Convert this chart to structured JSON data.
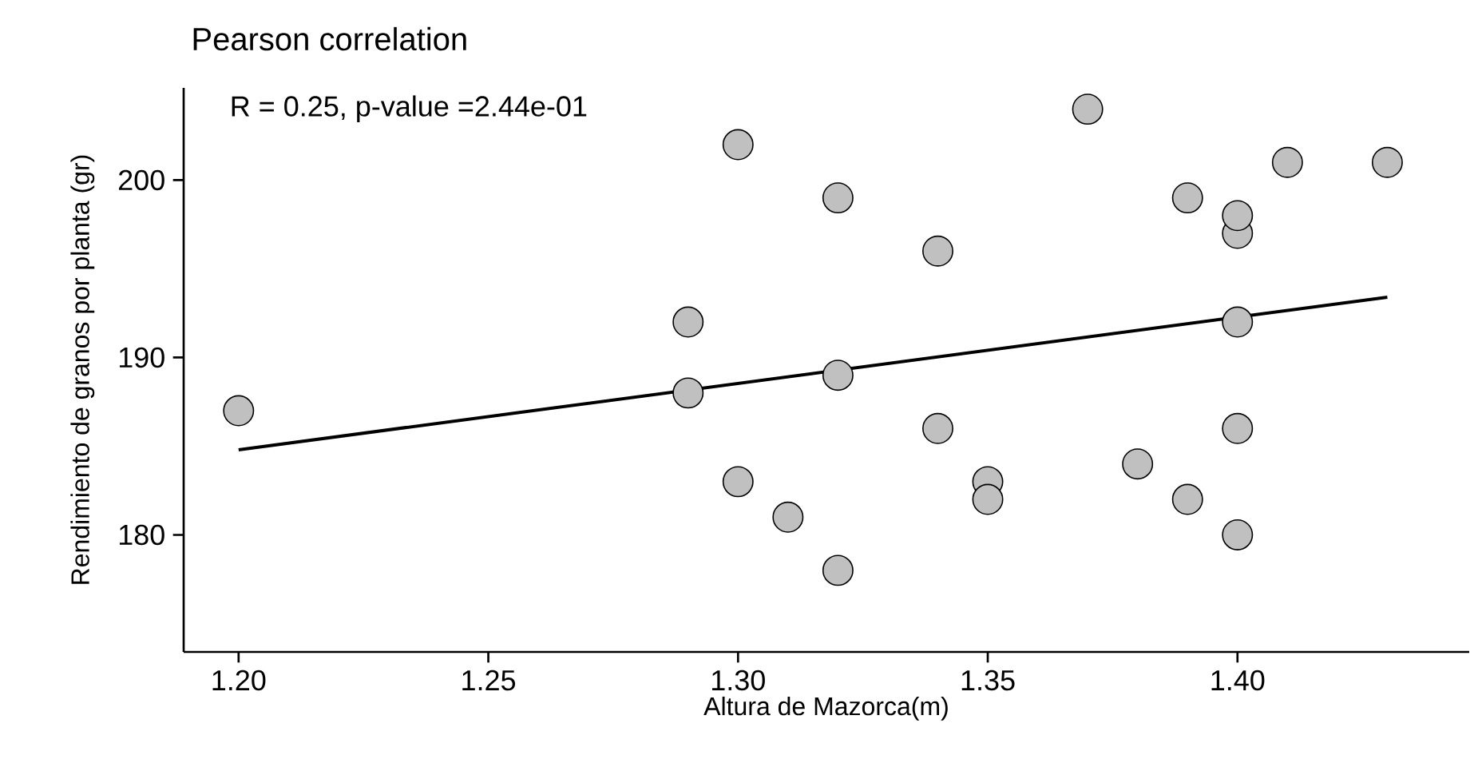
{
  "chart_data": {
    "type": "scatter",
    "title": "Pearson correlation",
    "xlabel": "Altura de Mazorca(m)",
    "ylabel": "Rendimiento de granos por planta (gr)",
    "annotations": [
      "R = 0.25, p-value =2.44e-01"
    ],
    "xlim": [
      1.189,
      1.4464
    ],
    "ylim": [
      173.4,
      205.2
    ],
    "xticks": [
      {
        "value": 1.2,
        "label": "1.20"
      },
      {
        "value": 1.25,
        "label": "1.25"
      },
      {
        "value": 1.3,
        "label": "1.30"
      },
      {
        "value": 1.35,
        "label": "1.35"
      },
      {
        "value": 1.4,
        "label": "1.40"
      }
    ],
    "yticks": [
      180,
      190,
      200
    ],
    "grid": false,
    "series": [
      {
        "type": "line",
        "color": "#000000",
        "marker": "none",
        "line_style": "solid",
        "x": [
          1.2,
          1.43
        ],
        "values": [
          184.8,
          193.4
        ]
      },
      {
        "color": "#c0c0c0",
        "marker": "circle",
        "x": [
          1.2,
          1.3,
          1.29,
          1.29,
          1.3,
          1.31,
          1.32,
          1.32,
          1.32,
          1.34,
          1.34,
          1.35,
          1.35,
          1.37,
          1.38,
          1.39,
          1.39,
          1.4,
          1.4,
          1.4,
          1.4,
          1.4,
          1.41,
          1.43
        ],
        "values": [
          187,
          202,
          192,
          188,
          183,
          181,
          199,
          189,
          178,
          196,
          186,
          183,
          182,
          204,
          184,
          199,
          182,
          197,
          198,
          192,
          186,
          180,
          201,
          201
        ]
      }
    ]
  }
}
